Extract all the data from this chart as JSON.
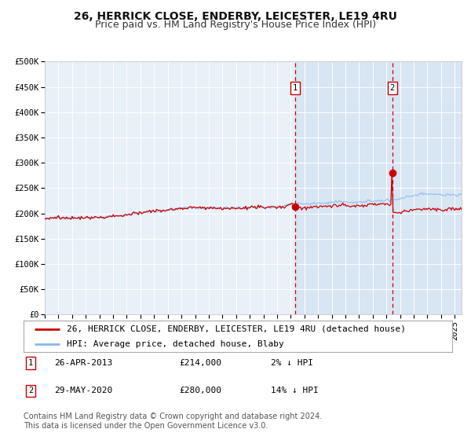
{
  "title": "26, HERRICK CLOSE, ENDERBY, LEICESTER, LE19 4RU",
  "subtitle": "Price paid vs. HM Land Registry's House Price Index (HPI)",
  "ylim": [
    0,
    500000
  ],
  "xlim_start": 1995.0,
  "xlim_end": 2025.5,
  "yticks": [
    0,
    50000,
    100000,
    150000,
    200000,
    250000,
    300000,
    350000,
    400000,
    450000,
    500000
  ],
  "ytick_labels": [
    "£0",
    "£50K",
    "£100K",
    "£150K",
    "£200K",
    "£250K",
    "£300K",
    "£350K",
    "£400K",
    "£450K",
    "£500K"
  ],
  "plot_bg_color": "#e8f0f8",
  "line1_color": "#cc0000",
  "line2_color": "#88bbee",
  "marker_color": "#cc0000",
  "vline_color": "#cc0000",
  "vline1_x": 2013.32,
  "vline2_x": 2020.42,
  "marker1_x": 2013.32,
  "marker1_y": 214000,
  "marker2_x": 2020.42,
  "marker2_y": 280000,
  "shade_start": 2013.32,
  "shade_end": 2025.5,
  "legend_line1": "26, HERRICK CLOSE, ENDERBY, LEICESTER, LE19 4RU (detached house)",
  "legend_line2": "HPI: Average price, detached house, Blaby",
  "note1_label": "1",
  "note1_date": "26-APR-2013",
  "note1_price": "£214,000",
  "note1_hpi": "2% ↓ HPI",
  "note2_label": "2",
  "note2_date": "29-MAY-2020",
  "note2_price": "£280,000",
  "note2_hpi": "14% ↓ HPI",
  "footnote": "Contains HM Land Registry data © Crown copyright and database right 2024.\nThis data is licensed under the Open Government Licence v3.0.",
  "title_fontsize": 10,
  "subtitle_fontsize": 9,
  "tick_fontsize": 7.5,
  "legend_fontsize": 8,
  "note_fontsize": 8,
  "footnote_fontsize": 7
}
